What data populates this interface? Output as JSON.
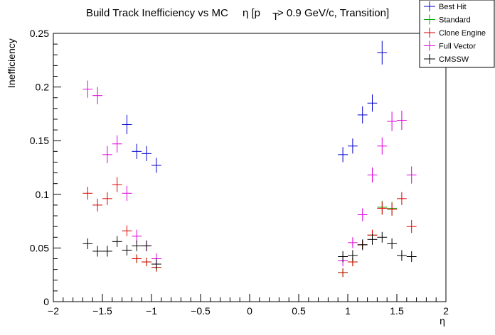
{
  "chart_data": {
    "type": "scatter",
    "title_main": "Build Track Inefficiency vs MC",
    "title_eta": "η [p",
    "title_sub": "T",
    "title_rest": " > 0.9 GeV/c, Transition]",
    "xlabel": "η",
    "ylabel": "Inefficiency",
    "xlim": [
      -2,
      2
    ],
    "ylim": [
      0,
      0.25
    ],
    "x_ticks": [
      -2,
      -1.5,
      -1,
      -0.5,
      0,
      0.5,
      1,
      1.5,
      2
    ],
    "x_tick_labels": [
      "−2",
      "−1.5",
      "−1",
      "−0.5",
      "0",
      "0.5",
      "1",
      "1.5",
      "2"
    ],
    "y_ticks": [
      0,
      0.05,
      0.1,
      0.15,
      0.2,
      0.25
    ],
    "y_tick_labels": [
      "0",
      "0.05",
      "0.1",
      "0.15",
      "0.2",
      "0.25"
    ],
    "grid": false,
    "legend_position": "top-right",
    "series": [
      {
        "name": "Best Hit",
        "color": "#0000cc",
        "x": [
          -1.25,
          -1.15,
          -1.05,
          -0.95,
          0.95,
          1.05,
          1.15,
          1.25,
          1.35
        ],
        "y": [
          0.165,
          0.14,
          0.138,
          0.127,
          0.137,
          0.145,
          0.174,
          0.185,
          0.232
        ],
        "yerr": [
          0.009,
          0.007,
          0.007,
          0.007,
          0.007,
          0.007,
          0.008,
          0.008,
          0.011
        ]
      },
      {
        "name": "Standard",
        "color": "#00aa00",
        "x": [
          -1.15,
          -1.05,
          -0.95,
          0.95,
          1.05,
          1.15,
          1.25,
          1.35,
          1.45
        ],
        "y": [
          0.04,
          0.037,
          0.032,
          0.027,
          0.037,
          0.053,
          0.062,
          0.088,
          0.087
        ],
        "yerr": [
          0.004,
          0.004,
          0.004,
          0.004,
          0.004,
          0.004,
          0.005,
          0.006,
          0.006
        ]
      },
      {
        "name": "Clone Engine",
        "color": "#dd0000",
        "x": [
          -1.65,
          -1.55,
          -1.45,
          -1.35,
          -1.25,
          -1.15,
          -1.05,
          -0.95,
          0.95,
          1.05,
          1.15,
          1.25,
          1.35,
          1.45,
          1.55,
          1.65
        ],
        "y": [
          0.101,
          0.09,
          0.096,
          0.109,
          0.066,
          0.04,
          0.037,
          0.032,
          0.027,
          0.037,
          0.053,
          0.062,
          0.087,
          0.086,
          0.096,
          0.07
        ],
        "yerr": [
          0.006,
          0.006,
          0.006,
          0.007,
          0.005,
          0.004,
          0.004,
          0.004,
          0.004,
          0.004,
          0.004,
          0.005,
          0.006,
          0.006,
          0.006,
          0.006
        ]
      },
      {
        "name": "Full Vector",
        "color": "#dd00dd",
        "x": [
          -1.65,
          -1.55,
          -1.45,
          -1.35,
          -1.25,
          -1.15,
          -1.05,
          -0.95,
          0.95,
          1.05,
          1.15,
          1.25,
          1.35,
          1.45,
          1.55,
          1.65
        ],
        "y": [
          0.198,
          0.192,
          0.137,
          0.147,
          0.101,
          0.061,
          0.052,
          0.04,
          0.038,
          0.055,
          0.081,
          0.118,
          0.145,
          0.168,
          0.169,
          0.118
        ],
        "yerr": [
          0.008,
          0.008,
          0.008,
          0.008,
          0.007,
          0.006,
          0.005,
          0.005,
          0.005,
          0.005,
          0.006,
          0.007,
          0.008,
          0.009,
          0.009,
          0.008
        ]
      },
      {
        "name": "CMSSW",
        "color": "#000000",
        "x": [
          -1.65,
          -1.55,
          -1.45,
          -1.35,
          -1.25,
          -1.15,
          -1.05,
          -0.95,
          0.95,
          1.05,
          1.15,
          1.25,
          1.35,
          1.45,
          1.55,
          1.65
        ],
        "y": [
          0.054,
          0.047,
          0.047,
          0.056,
          0.048,
          0.052,
          0.052,
          0.035,
          0.042,
          0.043,
          0.053,
          0.058,
          0.06,
          0.054,
          0.043,
          0.042
        ],
        "yerr": [
          0.005,
          0.005,
          0.005,
          0.005,
          0.005,
          0.005,
          0.005,
          0.005,
          0.005,
          0.005,
          0.005,
          0.005,
          0.005,
          0.005,
          0.005,
          0.005
        ]
      }
    ]
  }
}
